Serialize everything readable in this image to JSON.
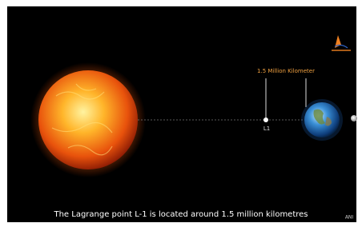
{
  "annotation": {
    "distance": "1.5 Million Kilometer",
    "point": "L1"
  },
  "caption": "The Lagrange point L-1 is located around 1.5 million kilometres",
  "credit": "ANI"
}
